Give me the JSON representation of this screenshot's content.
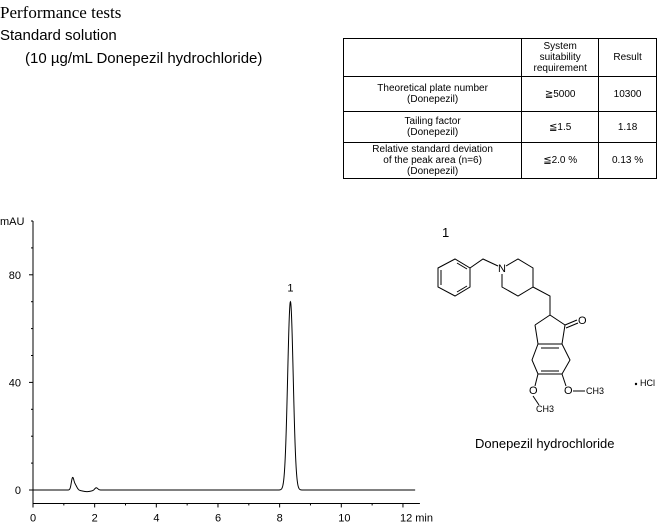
{
  "header": {
    "title": "Performance tests",
    "subtitle": "Standard solution",
    "sample": "(10 µg/mL Donepezil hydrochloride)"
  },
  "table": {
    "headers": [
      "",
      "System suitability requirement",
      "Result"
    ],
    "rows": [
      {
        "item": [
          "Theoretical plate number",
          "(Donepezil)"
        ],
        "requirement": "≧5000",
        "result": "10300"
      },
      {
        "item": [
          "Tailing factor",
          "(Donepezil)"
        ],
        "requirement": "≦1.5",
        "result": "1.18"
      },
      {
        "item": [
          "Relative standard deviation",
          "of the peak area (n=6)",
          "(Donepezil)"
        ],
        "requirement": "≦2.0 %",
        "result": "0.13 %"
      }
    ]
  },
  "structure": {
    "peak_label": "1",
    "name": "Donepezil hydrochloride",
    "atoms": {
      "n": "N",
      "o": "O",
      "ch3": "CH3",
      "salt": "HCl"
    }
  },
  "chart_data": {
    "type": "line",
    "title": "",
    "xlabel": "min",
    "ylabel": "mAU",
    "xlim": [
      0,
      12.55
    ],
    "ylim": [
      -5,
      100
    ],
    "xticks": [
      0,
      2,
      4,
      6,
      8,
      10,
      12
    ],
    "xtick_labels": [
      "0",
      "2",
      "4",
      "6",
      "8",
      "10",
      "12 min"
    ],
    "yticks": [
      0,
      40,
      80
    ],
    "grid": false,
    "peaks": [
      {
        "label": "1",
        "rt": 8.35,
        "height": 70,
        "width": 0.09
      },
      {
        "label": "",
        "rt": 1.28,
        "height": 3.8,
        "width": 0.04
      },
      {
        "label": "",
        "rt": 1.36,
        "height": 2.0,
        "width": 0.06
      },
      {
        "label": "",
        "rt": 1.75,
        "height": -0.6,
        "width": 0.15
      },
      {
        "label": "",
        "rt": 2.05,
        "height": 0.9,
        "width": 0.05
      }
    ],
    "x_range_trace": [
      0,
      12.4
    ],
    "color": "#000000"
  }
}
